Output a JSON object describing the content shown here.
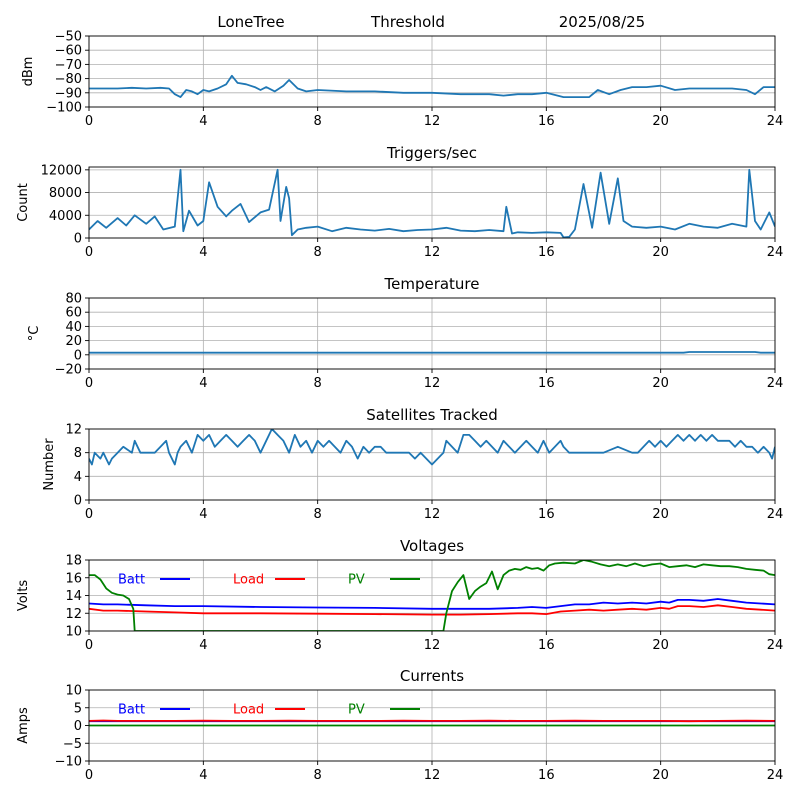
{
  "header": {
    "station": "LoneTree",
    "mode": "Threshold",
    "date": "2025/08/25"
  },
  "chart_data": [
    {
      "type": "line",
      "title": "",
      "xlabel": "",
      "ylabel": "dBm",
      "xlim": [
        0,
        24
      ],
      "ylim": [
        -100,
        -50
      ],
      "xticks": [
        0,
        4,
        8,
        12,
        16,
        20,
        24
      ],
      "yticks": [
        -100,
        -90,
        -80,
        -70,
        -60,
        -50
      ],
      "grid": true,
      "series": [
        {
          "color": "#1f77b4",
          "x": [
            0,
            0.5,
            1,
            1.5,
            2,
            2.5,
            2.8,
            3,
            3.2,
            3.4,
            3.6,
            3.8,
            4,
            4.2,
            4.5,
            4.8,
            5,
            5.2,
            5.5,
            5.8,
            6,
            6.2,
            6.5,
            6.8,
            7,
            7.3,
            7.6,
            8,
            9,
            10,
            11,
            12,
            13,
            14,
            14.5,
            15,
            15.5,
            16,
            16.6,
            17.5,
            17.8,
            18.2,
            18.6,
            19,
            19.5,
            20,
            20.5,
            21,
            22,
            22.5,
            23,
            23.3,
            23.6,
            24
          ],
          "y": [
            -87,
            -87,
            -87,
            -86.5,
            -87,
            -86.5,
            -87,
            -91,
            -93,
            -88,
            -89,
            -91,
            -88,
            -89,
            -87,
            -84,
            -78,
            -83,
            -84,
            -86,
            -88,
            -86,
            -89,
            -85,
            -81,
            -87,
            -89,
            -88,
            -89,
            -89,
            -90,
            -90,
            -91,
            -91,
            -92,
            -91,
            -91,
            -90,
            -93,
            -93,
            -88,
            -91,
            -88,
            -86,
            -86,
            -85,
            -88,
            -87,
            -87,
            -87,
            -88,
            -91,
            -86,
            -86
          ]
        }
      ]
    },
    {
      "type": "line",
      "title": "Triggers/sec",
      "xlabel": "",
      "ylabel": "Count",
      "xlim": [
        0,
        24
      ],
      "ylim": [
        0,
        12500
      ],
      "xticks": [
        0,
        4,
        8,
        12,
        16,
        20,
        24
      ],
      "yticks": [
        0,
        4000,
        8000,
        12000
      ],
      "grid": true,
      "series": [
        {
          "color": "#1f77b4",
          "x": [
            0,
            0.3,
            0.6,
            1.0,
            1.3,
            1.6,
            2.0,
            2.3,
            2.6,
            3.0,
            3.2,
            3.3,
            3.5,
            3.8,
            4.0,
            4.2,
            4.5,
            4.8,
            5.0,
            5.3,
            5.6,
            6.0,
            6.3,
            6.6,
            6.7,
            6.9,
            7.0,
            7.1,
            7.3,
            7.6,
            8.0,
            8.5,
            9.0,
            9.5,
            10.0,
            10.5,
            11.0,
            11.5,
            12.0,
            12.5,
            13.0,
            13.5,
            14.0,
            14.5,
            14.6,
            14.8,
            15.0,
            15.5,
            16.0,
            16.5,
            16.6,
            16.8,
            17.0,
            17.3,
            17.6,
            17.9,
            18.2,
            18.5,
            18.7,
            19.0,
            19.5,
            20.0,
            20.5,
            21.0,
            21.5,
            22.0,
            22.5,
            23.0,
            23.1,
            23.3,
            23.5,
            23.8,
            24.0
          ],
          "y": [
            1500,
            3000,
            1800,
            3500,
            2200,
            4000,
            2500,
            3800,
            1500,
            2000,
            12000,
            1200,
            4800,
            2200,
            3000,
            9800,
            5500,
            3800,
            4800,
            6000,
            2800,
            4500,
            5000,
            12000,
            3000,
            9000,
            7000,
            500,
            1500,
            1800,
            2000,
            1200,
            1800,
            1500,
            1300,
            1600,
            1200,
            1400,
            1500,
            1800,
            1300,
            1200,
            1400,
            1200,
            5500,
            800,
            1000,
            900,
            1000,
            900,
            100,
            200,
            1500,
            9500,
            1800,
            11500,
            2500,
            10500,
            3000,
            2000,
            1800,
            2000,
            1500,
            2500,
            2000,
            1800,
            2500,
            2000,
            12000,
            3000,
            1500,
            4500,
            2000
          ]
        }
      ]
    },
    {
      "type": "line",
      "title": "Temperature",
      "xlabel": "",
      "ylabel": "°C",
      "xlim": [
        0,
        24
      ],
      "ylim": [
        -20,
        80
      ],
      "xticks": [
        0,
        4,
        8,
        12,
        16,
        20,
        24
      ],
      "yticks": [
        -20,
        0,
        20,
        40,
        60,
        80
      ],
      "grid": true,
      "series": [
        {
          "color": "#1f77b4",
          "x": [
            0,
            4,
            8,
            12,
            16,
            20,
            20.8,
            21,
            22,
            23,
            23.3,
            23.5,
            24
          ],
          "y": [
            3,
            3,
            3,
            3,
            3,
            3,
            3,
            4,
            4,
            4,
            4,
            3,
            3
          ]
        }
      ]
    },
    {
      "type": "line",
      "title": "Satellites Tracked",
      "xlabel": "",
      "ylabel": "Number",
      "xlim": [
        0,
        24
      ],
      "ylim": [
        0,
        12
      ],
      "xticks": [
        0,
        4,
        8,
        12,
        16,
        20,
        24
      ],
      "yticks": [
        0,
        4,
        8,
        12
      ],
      "grid": true,
      "series": [
        {
          "color": "#1f77b4",
          "x": [
            0,
            0.1,
            0.2,
            0.4,
            0.5,
            0.7,
            0.8,
            1.0,
            1.2,
            1.5,
            1.6,
            1.8,
            2.0,
            2.3,
            2.5,
            2.7,
            2.8,
            3.0,
            3.1,
            3.2,
            3.4,
            3.6,
            3.8,
            4.0,
            4.2,
            4.4,
            4.6,
            4.8,
            5.0,
            5.2,
            5.4,
            5.6,
            5.8,
            6.0,
            6.2,
            6.4,
            6.6,
            6.8,
            7.0,
            7.2,
            7.4,
            7.6,
            7.8,
            8.0,
            8.2,
            8.4,
            8.6,
            8.8,
            9.0,
            9.2,
            9.4,
            9.6,
            9.8,
            10.0,
            10.2,
            10.4,
            10.6,
            10.8,
            11.0,
            11.2,
            11.4,
            11.6,
            11.8,
            12.0,
            12.2,
            12.4,
            12.5,
            12.7,
            12.9,
            13.1,
            13.3,
            13.5,
            13.7,
            13.9,
            14.1,
            14.3,
            14.5,
            14.7,
            14.9,
            15.1,
            15.3,
            15.5,
            15.7,
            15.9,
            16.1,
            16.3,
            16.5,
            16.6,
            16.8,
            17.0,
            17.5,
            18.0,
            18.5,
            19.0,
            19.2,
            19.4,
            19.6,
            19.8,
            20.0,
            20.2,
            20.4,
            20.6,
            20.8,
            21.0,
            21.2,
            21.4,
            21.6,
            21.8,
            22.0,
            22.2,
            22.4,
            22.6,
            22.8,
            23.0,
            23.2,
            23.4,
            23.6,
            23.8,
            23.9,
            24.0
          ],
          "y": [
            7,
            6,
            8,
            7,
            8,
            6,
            7,
            8,
            9,
            8,
            10,
            8,
            8,
            8,
            9,
            10,
            8,
            6,
            8,
            9,
            10,
            8,
            11,
            10,
            11,
            9,
            10,
            11,
            10,
            9,
            10,
            11,
            10,
            8,
            10,
            12,
            11,
            10,
            8,
            11,
            9,
            10,
            8,
            10,
            9,
            10,
            9,
            8,
            10,
            9,
            7,
            9,
            8,
            9,
            9,
            8,
            8,
            8,
            8,
            8,
            7,
            8,
            7,
            6,
            7,
            8,
            10,
            9,
            8,
            11,
            11,
            10,
            9,
            10,
            9,
            8,
            10,
            9,
            8,
            9,
            10,
            9,
            8,
            10,
            8,
            9,
            10,
            9,
            8,
            8,
            8,
            8,
            9,
            8,
            8,
            9,
            10,
            9,
            10,
            9,
            10,
            11,
            10,
            11,
            10,
            11,
            10,
            11,
            10,
            10,
            10,
            9,
            10,
            9,
            9,
            8,
            9,
            8,
            7,
            9
          ]
        }
      ]
    },
    {
      "type": "line",
      "title": "Voltages",
      "xlabel": "",
      "ylabel": "Volts",
      "xlim": [
        0,
        24
      ],
      "ylim": [
        10,
        18
      ],
      "xticks": [
        0,
        4,
        8,
        12,
        16,
        20,
        24
      ],
      "yticks": [
        10,
        12,
        14,
        16,
        18
      ],
      "grid": true,
      "legend": "top-left",
      "series": [
        {
          "name": "Batt",
          "color": "#0000ff",
          "x": [
            0,
            0.5,
            1,
            2,
            3,
            4,
            6,
            8,
            10,
            12,
            13,
            14,
            15,
            15.5,
            16,
            16.5,
            17,
            17.5,
            18,
            18.5,
            19,
            19.5,
            20,
            20.3,
            20.6,
            21,
            21.5,
            22,
            22.5,
            23,
            23.5,
            24
          ],
          "y": [
            13.1,
            13,
            13,
            12.9,
            12.8,
            12.8,
            12.7,
            12.65,
            12.6,
            12.5,
            12.5,
            12.5,
            12.6,
            12.7,
            12.6,
            12.8,
            13.0,
            13.0,
            13.2,
            13.1,
            13.2,
            13.1,
            13.3,
            13.2,
            13.5,
            13.5,
            13.4,
            13.6,
            13.4,
            13.2,
            13.1,
            13.0
          ]
        },
        {
          "name": "Load",
          "color": "#ff0000",
          "x": [
            0,
            0.5,
            1,
            2,
            3,
            4,
            6,
            8,
            10,
            12,
            13,
            14,
            15,
            15.5,
            16,
            16.5,
            17,
            17.5,
            18,
            18.5,
            19,
            19.5,
            20,
            20.3,
            20.6,
            21,
            21.5,
            22,
            22.5,
            23,
            23.5,
            24
          ],
          "y": [
            12.5,
            12.3,
            12.3,
            12.2,
            12.1,
            12.0,
            12.0,
            11.95,
            11.9,
            11.85,
            11.85,
            11.9,
            12.0,
            12.0,
            11.9,
            12.2,
            12.3,
            12.4,
            12.3,
            12.4,
            12.5,
            12.4,
            12.6,
            12.5,
            12.8,
            12.8,
            12.7,
            12.9,
            12.7,
            12.5,
            12.4,
            12.3
          ]
        },
        {
          "name": "PV",
          "color": "#008000",
          "x": [
            0,
            0.2,
            0.4,
            0.6,
            0.8,
            1.0,
            1.2,
            1.4,
            1.55,
            1.6,
            12.4,
            12.5,
            12.7,
            12.9,
            13.1,
            13.3,
            13.5,
            13.7,
            13.9,
            14.1,
            14.3,
            14.5,
            14.7,
            14.9,
            15.1,
            15.3,
            15.5,
            15.7,
            15.9,
            16.1,
            16.3,
            16.6,
            17.0,
            17.3,
            17.6,
            17.9,
            18.2,
            18.5,
            18.8,
            19.1,
            19.4,
            19.7,
            20.0,
            20.3,
            20.6,
            20.9,
            21.2,
            21.5,
            21.8,
            22.1,
            22.4,
            22.7,
            23.0,
            23.3,
            23.6,
            23.8,
            24.0
          ],
          "y": [
            16.3,
            16.3,
            15.8,
            14.8,
            14.3,
            14.1,
            14.0,
            13.6,
            12.5,
            10,
            10,
            12.0,
            14.5,
            15.5,
            16.3,
            13.6,
            14.5,
            15.0,
            15.4,
            16.7,
            14.7,
            16.3,
            16.8,
            17.0,
            16.9,
            17.2,
            17.0,
            17.1,
            16.8,
            17.4,
            17.6,
            17.7,
            17.6,
            18.0,
            17.8,
            17.5,
            17.3,
            17.5,
            17.3,
            17.6,
            17.3,
            17.5,
            17.6,
            17.2,
            17.3,
            17.4,
            17.2,
            17.5,
            17.4,
            17.3,
            17.3,
            17.2,
            17.0,
            16.9,
            16.8,
            16.4,
            16.3
          ]
        }
      ]
    },
    {
      "type": "line",
      "title": "Currents",
      "xlabel": "",
      "ylabel": "Amps",
      "xlim": [
        0,
        24
      ],
      "ylim": [
        -10,
        10
      ],
      "xticks": [
        0,
        4,
        8,
        12,
        16,
        20,
        24
      ],
      "yticks": [
        -10,
        -5,
        0,
        5,
        10
      ],
      "grid": true,
      "legend": "top-left",
      "series": [
        {
          "name": "Batt",
          "color": "#0000ff",
          "x": [
            0,
            4,
            8,
            12,
            16,
            20,
            24
          ],
          "y": [
            1.2,
            1.2,
            1.2,
            1.2,
            1.2,
            1.2,
            1.2
          ]
        },
        {
          "name": "Load",
          "color": "#ff0000",
          "x": [
            0,
            0.5,
            1,
            2,
            3,
            4,
            5,
            6,
            7,
            8,
            9,
            10,
            11,
            12,
            13,
            14,
            15,
            16,
            17,
            18,
            19,
            20,
            21,
            22,
            23,
            24
          ],
          "y": [
            1.3,
            1.4,
            1.3,
            1.3,
            1.3,
            1.35,
            1.3,
            1.3,
            1.35,
            1.3,
            1.3,
            1.3,
            1.35,
            1.3,
            1.3,
            1.35,
            1.3,
            1.3,
            1.35,
            1.3,
            1.3,
            1.3,
            1.2,
            1.3,
            1.35,
            1.3
          ]
        },
        {
          "name": "PV",
          "color": "#008000",
          "x": [
            0,
            4,
            8,
            12,
            16,
            20,
            24
          ],
          "y": [
            0,
            0,
            0,
            0,
            0,
            0,
            0
          ]
        }
      ]
    }
  ]
}
